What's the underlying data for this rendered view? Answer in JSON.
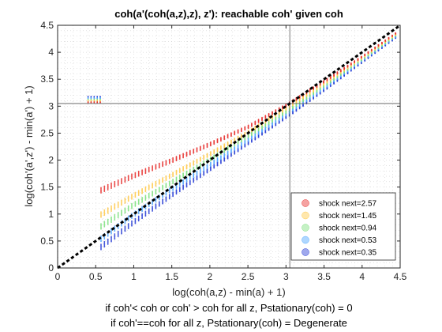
{
  "chart_data": {
    "type": "scatter",
    "title": "coh(a'(coh(a,z),z), z'): reachable coh' given coh",
    "xlabel": "log(coh(a,z) - min(a) + 1)",
    "ylabel": "log(coh'(a',z') - min(a') + 1)",
    "xlim": [
      0,
      4.5
    ],
    "ylim": [
      0,
      4.5
    ],
    "xticks": [
      "0",
      "0.5",
      "1",
      "1.5",
      "2",
      "2.5",
      "3",
      "3.5",
      "4",
      "4.5"
    ],
    "yticks": [
      "0",
      "0.5",
      "1",
      "1.5",
      "2",
      "2.5",
      "3",
      "3.5",
      "4",
      "4.5"
    ],
    "grid": "minor-dotted",
    "legend_position": "bottom-right",
    "reference_lines": {
      "vertical_x": 3.05,
      "horizontal_y": 3.05,
      "diagonal": "y = x (black dashed)"
    },
    "series": [
      {
        "name": "shock next=2.57",
        "color": "#e8312f",
        "x": [
          0.57,
          1.0,
          1.5,
          2.0,
          2.5,
          3.0,
          3.5,
          4.0,
          4.45
        ],
        "y": [
          1.45,
          1.72,
          2.0,
          2.3,
          2.62,
          3.02,
          3.46,
          3.92,
          4.36
        ]
      },
      {
        "name": "shock next=1.45",
        "color": "#ffc94a",
        "x": [
          0.57,
          1.0,
          1.5,
          2.0,
          2.5,
          3.0,
          3.5,
          4.0,
          4.45
        ],
        "y": [
          1.0,
          1.35,
          1.73,
          2.12,
          2.52,
          2.96,
          3.42,
          3.9,
          4.34
        ]
      },
      {
        "name": "shock next=0.94",
        "color": "#7ee07e",
        "x": [
          0.57,
          1.0,
          1.5,
          2.0,
          2.5,
          3.0,
          3.5,
          4.0,
          4.45
        ],
        "y": [
          0.78,
          1.18,
          1.6,
          2.02,
          2.45,
          2.9,
          3.38,
          3.87,
          4.32
        ]
      },
      {
        "name": "shock next=0.53",
        "color": "#4da6ff",
        "x": [
          0.57,
          1.0,
          1.5,
          2.0,
          2.5,
          3.0,
          3.5,
          4.0,
          4.45
        ],
        "y": [
          0.55,
          1.0,
          1.47,
          1.92,
          2.38,
          2.85,
          3.34,
          3.85,
          4.3
        ]
      },
      {
        "name": "shock next=0.35",
        "color": "#2a3fd6",
        "x": [
          0.57,
          1.0,
          1.5,
          2.0,
          2.5,
          3.0,
          3.5,
          4.0,
          4.45
        ],
        "y": [
          0.4,
          0.86,
          1.36,
          1.84,
          2.32,
          2.8,
          3.3,
          3.82,
          4.28
        ]
      }
    ],
    "notes": [
      "if coh'< coh or coh' > coh for all z, Pstationary(coh) = 0",
      "if coh'==coh for all z, Pstationary(coh) = Degenerate"
    ]
  }
}
